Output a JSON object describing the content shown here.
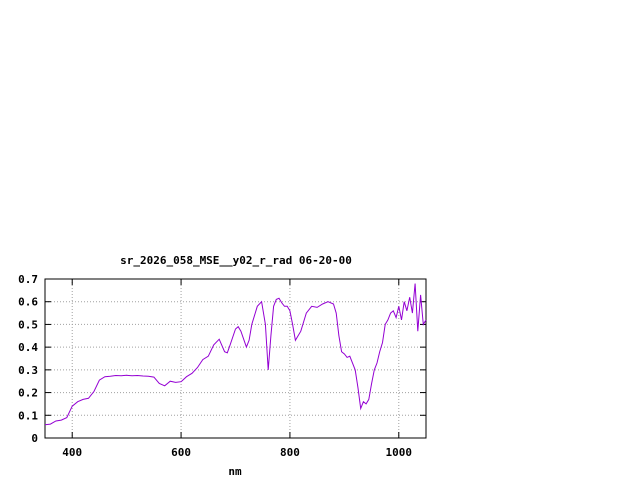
{
  "chart_data": {
    "type": "line",
    "title": "sr_2026_058_MSE__y02_r_rad 06-20-00",
    "xlabel": "nm",
    "ylabel": "",
    "xlim": [
      350,
      1050
    ],
    "ylim": [
      0,
      0.7
    ],
    "x_ticks": [
      400,
      600,
      800,
      1000
    ],
    "y_ticks": [
      0,
      0.1,
      0.2,
      0.3,
      0.4,
      0.5,
      0.6,
      0.7
    ],
    "grid": true,
    "line_color": "#9400d3",
    "series": [
      {
        "x": [
          350,
          360,
          370,
          380,
          390,
          400,
          410,
          420,
          430,
          440,
          450,
          460,
          470,
          480,
          490,
          500,
          510,
          520,
          530,
          540,
          550,
          560,
          570,
          580,
          590,
          600,
          610,
          620,
          630,
          640,
          650,
          660,
          670,
          680,
          685,
          690,
          700,
          705,
          710,
          720,
          725,
          730,
          740,
          748,
          755,
          760,
          765,
          770,
          775,
          780,
          785,
          790,
          795,
          800,
          805,
          810,
          820,
          830,
          840,
          850,
          860,
          870,
          880,
          885,
          890,
          895,
          900,
          905,
          910,
          920,
          925,
          930,
          935,
          940,
          945,
          950,
          955,
          960,
          965,
          970,
          975,
          980,
          985,
          990,
          995,
          1000,
          1005,
          1010,
          1015,
          1020,
          1025,
          1030,
          1035,
          1040,
          1045,
          1050
        ],
        "values": [
          0.058,
          0.061,
          0.075,
          0.079,
          0.09,
          0.14,
          0.16,
          0.17,
          0.175,
          0.205,
          0.255,
          0.27,
          0.272,
          0.275,
          0.274,
          0.276,
          0.274,
          0.275,
          0.273,
          0.272,
          0.268,
          0.24,
          0.23,
          0.25,
          0.245,
          0.248,
          0.27,
          0.285,
          0.31,
          0.345,
          0.36,
          0.41,
          0.435,
          0.38,
          0.375,
          0.41,
          0.48,
          0.49,
          0.47,
          0.4,
          0.43,
          0.5,
          0.58,
          0.6,
          0.5,
          0.3,
          0.45,
          0.58,
          0.61,
          0.615,
          0.595,
          0.58,
          0.58,
          0.56,
          0.5,
          0.43,
          0.47,
          0.55,
          0.58,
          0.575,
          0.59,
          0.6,
          0.59,
          0.55,
          0.45,
          0.38,
          0.37,
          0.355,
          0.36,
          0.3,
          0.22,
          0.13,
          0.16,
          0.15,
          0.17,
          0.24,
          0.3,
          0.33,
          0.38,
          0.42,
          0.5,
          0.52,
          0.55,
          0.56,
          0.53,
          0.58,
          0.52,
          0.6,
          0.56,
          0.62,
          0.55,
          0.68,
          0.47,
          0.63,
          0.5,
          0.52
        ]
      }
    ]
  }
}
